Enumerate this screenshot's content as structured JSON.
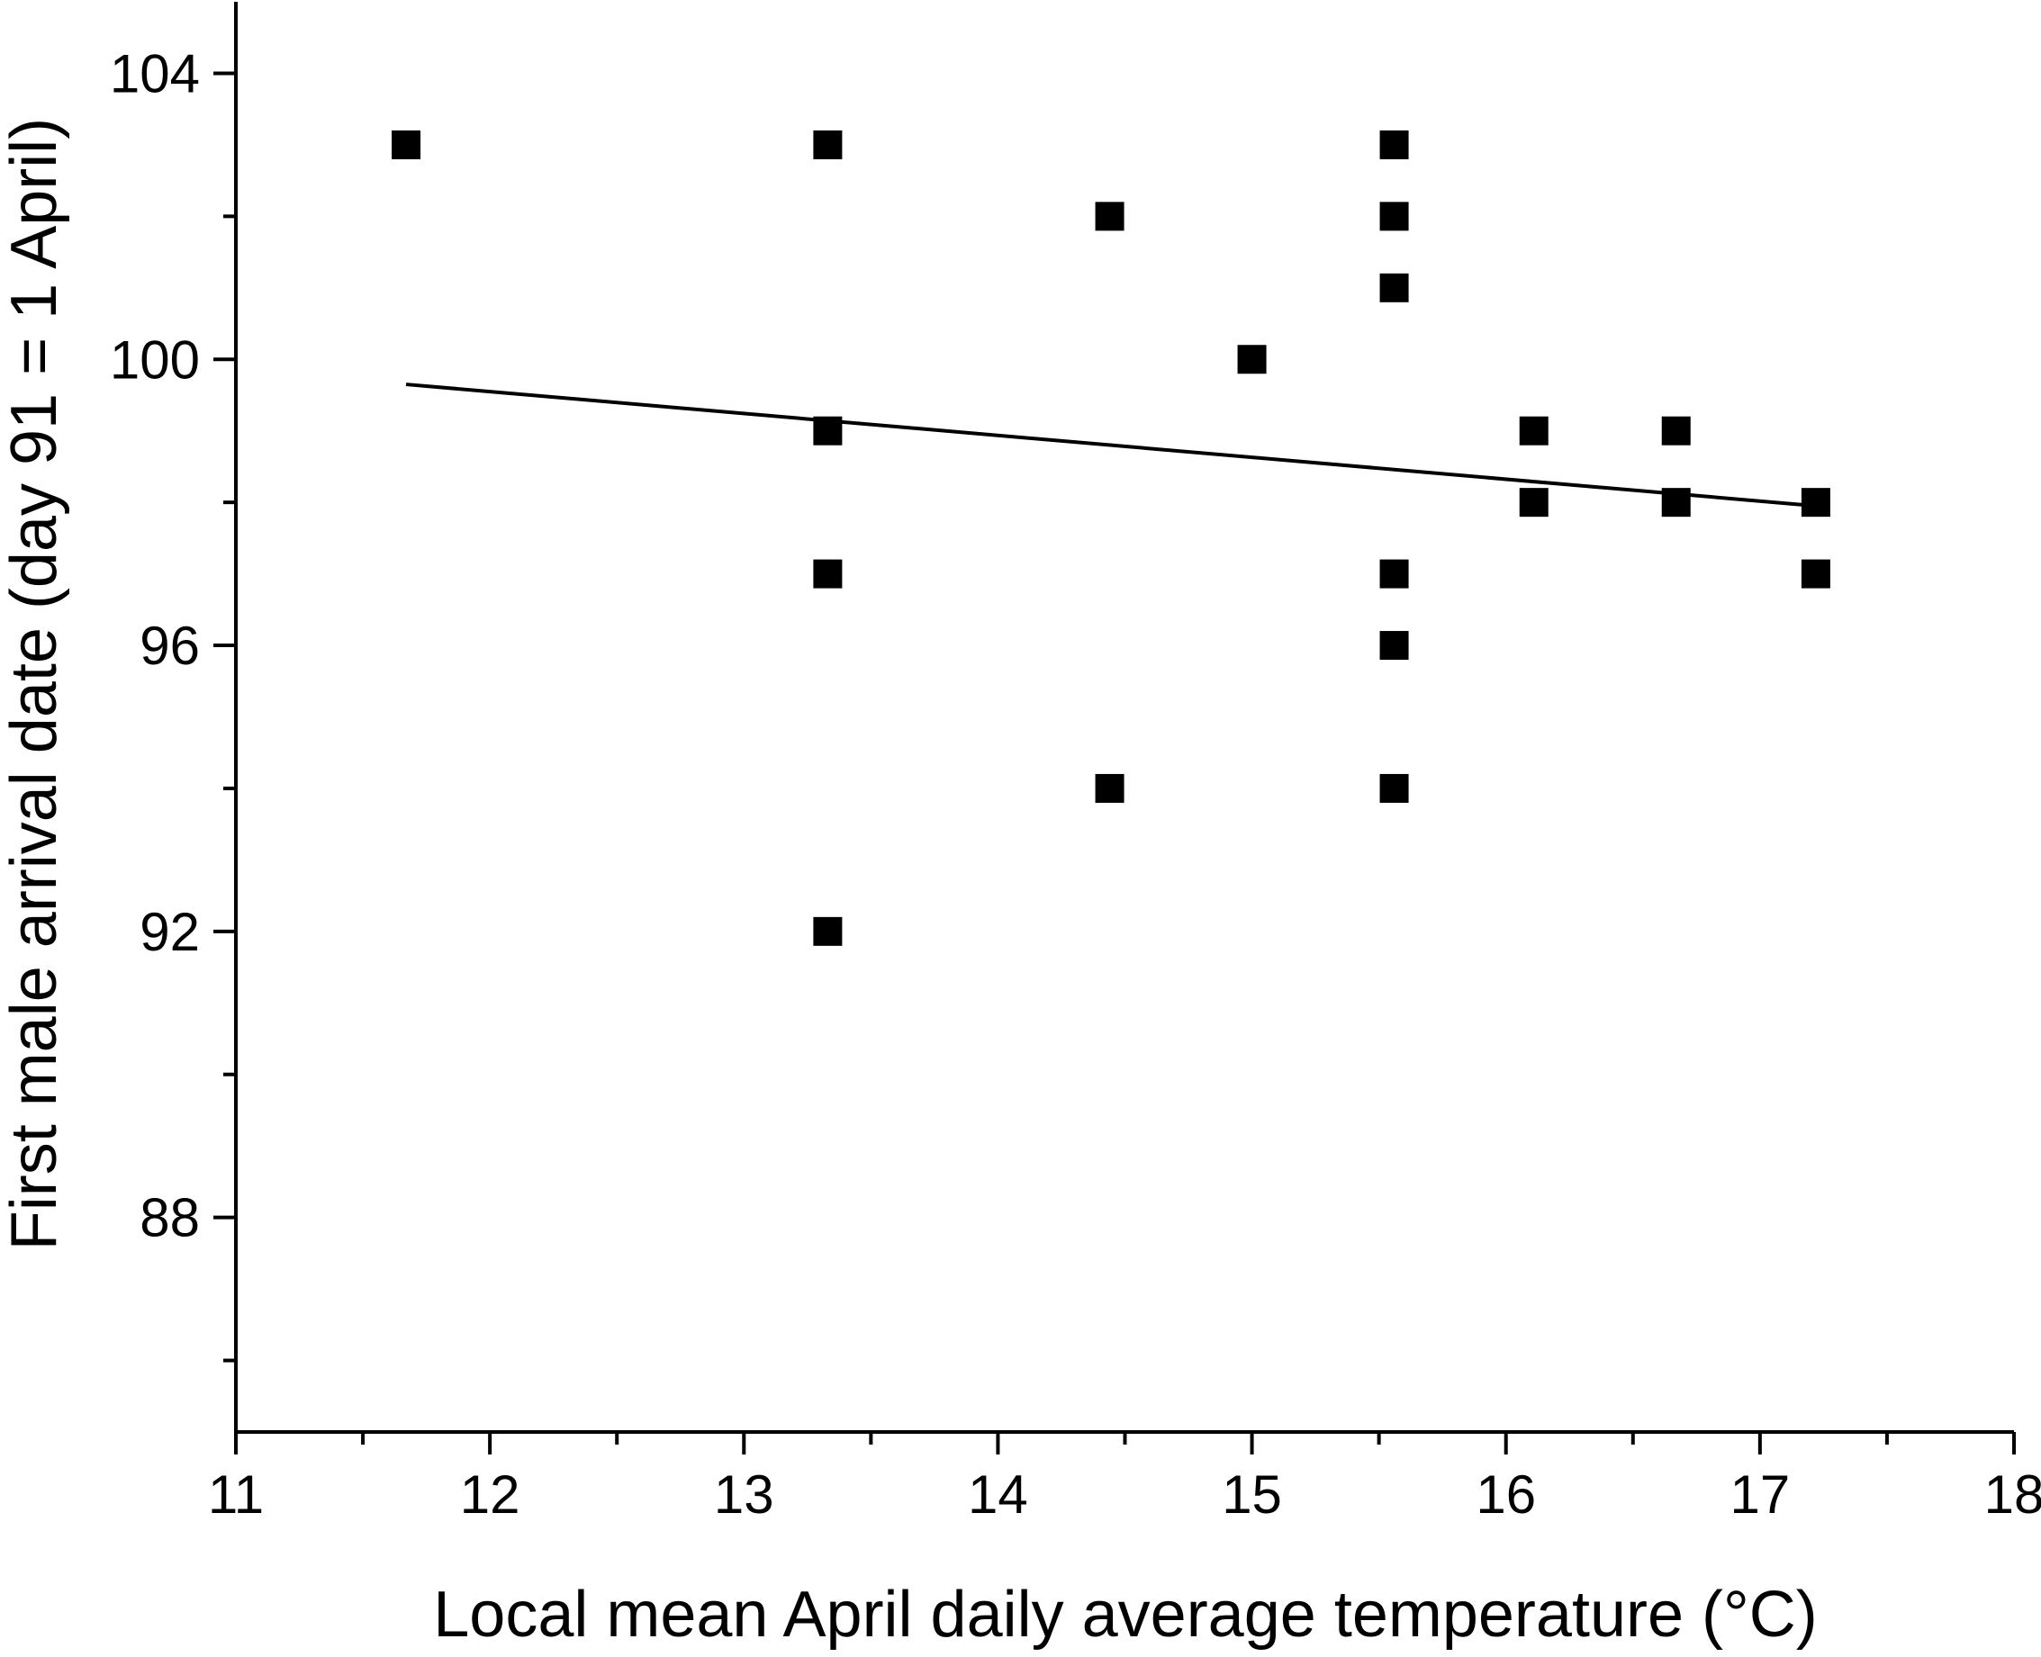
{
  "chart_data": {
    "type": "scatter",
    "title": "",
    "xlabel": "Local mean April daily average temperature (°C)",
    "ylabel": "First male arrival date (day 91 =  1 April)",
    "xlim": [
      11,
      18
    ],
    "ylim": [
      85,
      105
    ],
    "x_ticks": [
      11,
      12,
      13,
      14,
      15,
      16,
      17,
      18
    ],
    "x_tick_labels": [
      "11",
      "12",
      "13",
      "14",
      "15",
      "16",
      "17",
      "18"
    ],
    "x_minor_ticks": [
      11.5,
      12.5,
      13.5,
      14.5,
      15.5,
      16.5,
      17.5
    ],
    "y_ticks": [
      88,
      92,
      96,
      100,
      104
    ],
    "y_tick_labels": [
      "88",
      "92",
      "96",
      "100",
      "104"
    ],
    "y_minor_ticks": [
      86,
      90,
      94,
      98,
      102
    ],
    "grid": false,
    "marker": "square",
    "marker_color": "#000000",
    "line_color": "#000000",
    "points": [
      {
        "x": 11.67,
        "y": 103
      },
      {
        "x": 13.33,
        "y": 103
      },
      {
        "x": 13.33,
        "y": 99
      },
      {
        "x": 13.33,
        "y": 97
      },
      {
        "x": 13.33,
        "y": 92
      },
      {
        "x": 14.44,
        "y": 102
      },
      {
        "x": 14.44,
        "y": 94
      },
      {
        "x": 15.0,
        "y": 100
      },
      {
        "x": 15.56,
        "y": 103
      },
      {
        "x": 15.56,
        "y": 102
      },
      {
        "x": 15.56,
        "y": 101
      },
      {
        "x": 15.56,
        "y": 97
      },
      {
        "x": 15.56,
        "y": 96
      },
      {
        "x": 15.56,
        "y": 94
      },
      {
        "x": 16.11,
        "y": 99
      },
      {
        "x": 16.11,
        "y": 98
      },
      {
        "x": 16.67,
        "y": 99
      },
      {
        "x": 16.67,
        "y": 98
      },
      {
        "x": 17.22,
        "y": 98
      },
      {
        "x": 17.22,
        "y": 97
      }
    ],
    "fit_line": {
      "x": [
        11.67,
        17.22
      ],
      "y": [
        99.65,
        97.95
      ]
    }
  }
}
